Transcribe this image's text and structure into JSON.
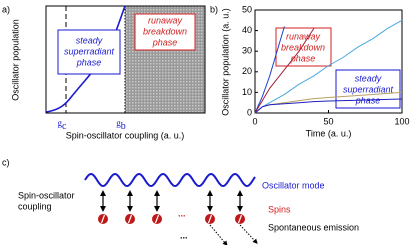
{
  "chart_data": [
    {
      "type": "schematic",
      "panel_label": "a)",
      "xlabel": "Spin-oscillator coupling (a. u.)",
      "ylabel": "Oscillator population",
      "xmarks": [
        {
          "symbol": "g",
          "subscript": "c"
        },
        {
          "symbol": "g",
          "subscript": "b"
        }
      ],
      "annotations": [
        {
          "lines": [
            "steady",
            "superradiant",
            "phase"
          ],
          "color": "#1a1ad0"
        },
        {
          "lines": [
            "runaway",
            "breakdown",
            "phase"
          ],
          "color": "#d02020"
        }
      ]
    },
    {
      "type": "line",
      "panel_label": "b)",
      "xlabel": "Time (a. u.)",
      "ylabel": "Oscillator population (a. u.)",
      "x": [
        0,
        5,
        10,
        20,
        30,
        40,
        50,
        60,
        70,
        80,
        90,
        100
      ],
      "xlim": [
        0,
        100
      ],
      "xticks": [
        0,
        50,
        100
      ],
      "ylim": [
        0,
        50
      ],
      "yticks": [
        0,
        10,
        20,
        30,
        40,
        50
      ],
      "series": [
        {
          "color": "#2040d0",
          "values": [
            0,
            8,
            18,
            42,
            null,
            null,
            null,
            null,
            null,
            null,
            null,
            null
          ]
        },
        {
          "color": "#a0203a",
          "values": [
            0,
            6,
            12,
            21,
            30,
            41,
            null,
            null,
            null,
            null,
            null,
            null
          ]
        },
        {
          "color": "#4aa8e0",
          "values": [
            0,
            3,
            5,
            9,
            14,
            18,
            23,
            27,
            32,
            36,
            41,
            45
          ]
        },
        {
          "color": "#b8a060",
          "values": [
            0,
            3,
            4,
            5,
            6,
            7,
            7.5,
            8,
            8.5,
            9,
            9.5,
            10
          ]
        },
        {
          "color": "#2020c0",
          "values": [
            0,
            3,
            4,
            4.5,
            5,
            5.5,
            5.8,
            6,
            6.2,
            6.4,
            6.6,
            6.8
          ]
        }
      ],
      "annotations": [
        {
          "lines": [
            "runaway",
            "breakdown",
            "phase"
          ],
          "color": "#d02020"
        },
        {
          "lines": [
            "steady",
            "superradiant",
            "phase"
          ],
          "color": "#1a1ad0"
        }
      ]
    }
  ],
  "diagram": {
    "panel_label": "c)",
    "oscillator_mode": "Oscillator mode",
    "coupling": [
      "Spin-oscillator",
      "coupling"
    ],
    "spins": "Spins",
    "emission": "Spontaneous emission",
    "ellipsis_spins": "...",
    "ellipsis_emission": "..."
  }
}
